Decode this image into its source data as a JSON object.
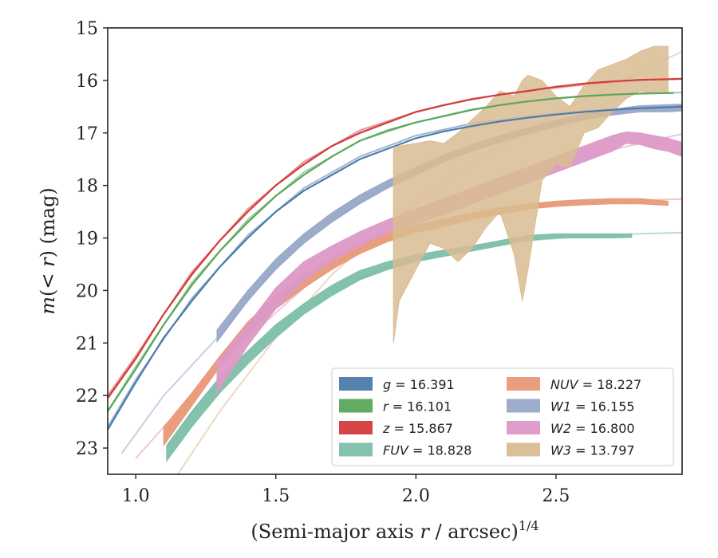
{
  "chart_data": {
    "type": "line",
    "xlabel": "(Semi-major axis r / arcsec)^1/4",
    "ylabel": "m(< r) (mag)",
    "xlim": [
      0.9,
      2.95
    ],
    "ylim": [
      23.5,
      15
    ],
    "y_inverted": true,
    "xticks": [
      1.0,
      1.5,
      2.0,
      2.5
    ],
    "xtick_labels": [
      "1.0",
      "1.5",
      "2.0",
      "2.5"
    ],
    "yticks": [
      15,
      16,
      17,
      18,
      19,
      20,
      21,
      22,
      23
    ],
    "ytick_labels": [
      "15",
      "16",
      "17",
      "18",
      "19",
      "20",
      "21",
      "22",
      "23"
    ],
    "legend_position": "lower-right",
    "series": [
      {
        "name": "g = 16.391",
        "legend": {
          "base": "g",
          "value": "16.391"
        },
        "color": "#4c7bab",
        "kind": "line",
        "width": 2.2,
        "x": [
          0.9,
          1.0,
          1.1,
          1.2,
          1.3,
          1.4,
          1.5,
          1.6,
          1.7,
          1.8,
          1.9,
          2.0,
          2.1,
          2.2,
          2.3,
          2.4,
          2.5,
          2.6,
          2.7,
          2.8,
          2.9,
          2.95
        ],
        "y": [
          22.65,
          21.75,
          20.9,
          20.2,
          19.55,
          19.0,
          18.5,
          18.1,
          17.8,
          17.5,
          17.3,
          17.1,
          16.97,
          16.87,
          16.78,
          16.71,
          16.65,
          16.6,
          16.56,
          16.53,
          16.51,
          16.5
        ],
        "model_x": [
          0.9,
          1.0,
          1.2,
          1.4,
          1.6,
          1.8,
          2.0,
          2.2,
          2.4,
          2.6,
          2.8,
          2.95
        ],
        "model_y": [
          22.6,
          21.7,
          20.15,
          18.95,
          18.05,
          17.45,
          17.05,
          16.82,
          16.68,
          16.58,
          16.52,
          16.49
        ]
      },
      {
        "name": "r = 16.101",
        "legend": {
          "base": "r",
          "value": "16.101"
        },
        "color": "#5aa75a",
        "kind": "line",
        "width": 2.2,
        "x": [
          0.9,
          1.0,
          1.1,
          1.2,
          1.3,
          1.4,
          1.5,
          1.6,
          1.7,
          1.8,
          1.9,
          2.0,
          2.1,
          2.2,
          2.3,
          2.4,
          2.5,
          2.6,
          2.7,
          2.8,
          2.92
        ],
        "y": [
          22.3,
          21.5,
          20.65,
          19.9,
          19.25,
          18.7,
          18.2,
          17.8,
          17.45,
          17.15,
          16.95,
          16.8,
          16.68,
          16.56,
          16.47,
          16.4,
          16.34,
          16.3,
          16.27,
          16.25,
          16.24
        ],
        "model_x": [
          0.9,
          1.0,
          1.2,
          1.4,
          1.6,
          1.8,
          2.0,
          2.2,
          2.4,
          2.6,
          2.8,
          2.95
        ],
        "model_y": [
          22.3,
          21.45,
          19.85,
          18.65,
          17.75,
          17.15,
          16.8,
          16.55,
          16.4,
          16.3,
          16.25,
          16.23
        ]
      },
      {
        "name": "z = 15.867",
        "legend": {
          "base": "z",
          "value": "15.867"
        },
        "color": "#d33b3b",
        "kind": "line",
        "width": 2.2,
        "x": [
          0.9,
          1.0,
          1.1,
          1.2,
          1.3,
          1.4,
          1.5,
          1.6,
          1.7,
          1.8,
          1.9,
          2.0,
          2.1,
          2.2,
          2.3,
          2.4,
          2.5,
          2.6,
          2.7,
          2.8,
          2.95
        ],
        "y": [
          22.05,
          21.3,
          20.45,
          19.7,
          19.05,
          18.5,
          18.0,
          17.6,
          17.25,
          17.0,
          16.8,
          16.6,
          16.47,
          16.36,
          16.27,
          16.2,
          16.12,
          16.06,
          16.02,
          15.99,
          15.97
        ],
        "model_x": [
          0.9,
          1.0,
          1.2,
          1.4,
          1.6,
          1.8,
          2.0,
          2.2,
          2.4,
          2.6,
          2.8,
          2.95
        ],
        "model_y": [
          22.0,
          21.25,
          19.65,
          18.45,
          17.55,
          16.95,
          16.6,
          16.35,
          16.2,
          16.08,
          16.0,
          15.97
        ]
      },
      {
        "name": "FUV = 18.828",
        "legend": {
          "base": "FUV",
          "value": "18.828"
        },
        "color": "#7dbfaa",
        "kind": "band",
        "x": [
          1.11,
          1.2,
          1.3,
          1.4,
          1.5,
          1.6,
          1.7,
          1.8,
          1.9,
          2.0,
          2.1,
          2.2,
          2.3,
          2.4,
          2.5,
          2.6,
          2.7,
          2.77
        ],
        "y_low": [
          23.25,
          22.6,
          21.95,
          21.4,
          20.9,
          20.45,
          20.1,
          19.8,
          19.6,
          19.45,
          19.35,
          19.25,
          19.15,
          19.05,
          19.0,
          19.0,
          19.0,
          18.99
        ],
        "y_high": [
          22.95,
          22.3,
          21.65,
          21.15,
          20.65,
          20.25,
          19.9,
          19.62,
          19.45,
          19.32,
          19.23,
          19.15,
          19.05,
          18.95,
          18.92,
          18.92,
          18.92,
          18.92
        ],
        "model_x": [
          1.11,
          1.2,
          1.4,
          1.6,
          1.8,
          2.0,
          2.2,
          2.4,
          2.6,
          2.8,
          2.95
        ],
        "model_y": [
          23.0,
          22.35,
          21.2,
          20.35,
          19.75,
          19.4,
          19.18,
          19.05,
          18.97,
          18.92,
          18.9
        ]
      },
      {
        "name": "NUV = 18.227",
        "legend": {
          "base": "NUV",
          "value": "18.227"
        },
        "color": "#e89a78",
        "kind": "band",
        "x": [
          1.1,
          1.2,
          1.3,
          1.4,
          1.5,
          1.6,
          1.7,
          1.8,
          1.9,
          2.0,
          2.1,
          2.2,
          2.3,
          2.4,
          2.5,
          2.6,
          2.7,
          2.8,
          2.9
        ],
        "y_low": [
          22.95,
          22.2,
          21.45,
          20.85,
          20.35,
          19.95,
          19.6,
          19.3,
          19.07,
          18.9,
          18.78,
          18.65,
          18.55,
          18.45,
          18.4,
          18.37,
          18.35,
          18.35,
          18.38
        ],
        "y_high": [
          22.6,
          21.95,
          21.25,
          20.6,
          20.1,
          19.7,
          19.38,
          19.1,
          18.9,
          18.75,
          18.63,
          18.52,
          18.42,
          18.35,
          18.3,
          18.27,
          18.25,
          18.25,
          18.3
        ],
        "model_x": [
          1.1,
          1.2,
          1.4,
          1.6,
          1.8,
          2.0,
          2.2,
          2.4,
          2.6,
          2.8,
          2.95
        ],
        "model_y": [
          22.75,
          22.05,
          20.7,
          19.8,
          19.2,
          18.82,
          18.58,
          18.42,
          18.33,
          18.28,
          18.26
        ]
      },
      {
        "name": "W1 = 16.155",
        "legend": {
          "base": "W1",
          "value": "16.155"
        },
        "color": "#99a8c8",
        "kind": "band",
        "x": [
          1.29,
          1.4,
          1.5,
          1.6,
          1.7,
          1.8,
          1.9,
          2.0,
          2.1,
          2.2,
          2.3,
          2.4,
          2.5,
          2.6,
          2.7,
          2.8,
          2.9,
          2.95
        ],
        "y_low": [
          20.98,
          20.2,
          19.6,
          19.1,
          18.7,
          18.35,
          18.05,
          17.8,
          17.55,
          17.35,
          17.18,
          17.02,
          16.88,
          16.75,
          16.66,
          16.6,
          16.6,
          16.58
        ],
        "y_high": [
          20.75,
          20.0,
          19.4,
          18.92,
          18.52,
          18.18,
          17.9,
          17.65,
          17.42,
          17.22,
          17.05,
          16.9,
          16.76,
          16.64,
          16.55,
          16.48,
          16.46,
          16.45
        ],
        "model_x": [
          0.95,
          1.1,
          1.3,
          1.5,
          1.7,
          1.9,
          2.1,
          2.3,
          2.5,
          2.7,
          2.95
        ],
        "model_y": [
          23.1,
          22.0,
          20.85,
          19.55,
          18.65,
          18.0,
          17.5,
          17.12,
          16.82,
          16.62,
          16.48
        ]
      },
      {
        "name": "W2 = 16.800",
        "legend": {
          "base": "W2",
          "value": "16.800"
        },
        "color": "#dd99c6",
        "kind": "band",
        "x": [
          1.29,
          1.4,
          1.5,
          1.6,
          1.7,
          1.8,
          1.9,
          2.0,
          2.1,
          2.2,
          2.3,
          2.4,
          2.5,
          2.6,
          2.7,
          2.75,
          2.8,
          2.85,
          2.9,
          2.95
        ],
        "y_low": [
          21.95,
          21.05,
          20.35,
          19.8,
          19.45,
          19.15,
          18.9,
          18.72,
          18.55,
          18.35,
          18.15,
          17.95,
          17.75,
          17.55,
          17.35,
          17.2,
          17.22,
          17.3,
          17.35,
          17.45
        ],
        "y_high": [
          21.35,
          20.65,
          19.95,
          19.45,
          19.15,
          18.88,
          18.65,
          18.45,
          18.25,
          18.05,
          17.85,
          17.65,
          17.45,
          17.25,
          17.05,
          16.98,
          17.0,
          17.05,
          17.1,
          17.18
        ],
        "model_x": [
          1.0,
          1.2,
          1.4,
          1.6,
          1.8,
          2.0,
          2.2,
          2.4,
          2.6,
          2.8,
          2.95
        ],
        "model_y": [
          23.2,
          22.0,
          20.9,
          19.95,
          19.2,
          18.6,
          18.15,
          17.8,
          17.45,
          17.2,
          17.02
        ]
      },
      {
        "name": "W3 = 13.797",
        "legend": {
          "base": "W3",
          "value": "13.797"
        },
        "color": "#d9bc92",
        "kind": "band",
        "x": [
          1.92,
          1.94,
          2.0,
          2.05,
          2.1,
          2.15,
          2.2,
          2.25,
          2.3,
          2.35,
          2.38,
          2.4,
          2.45,
          2.5,
          2.55,
          2.6,
          2.65,
          2.7,
          2.75,
          2.8,
          2.85,
          2.9
        ],
        "y_low": [
          21.0,
          20.2,
          19.6,
          19.1,
          19.2,
          19.45,
          19.2,
          18.8,
          18.5,
          19.3,
          20.2,
          19.6,
          17.9,
          17.6,
          17.65,
          17.0,
          16.9,
          16.6,
          16.35,
          16.2,
          16.25,
          16.25
        ],
        "y_high": [
          17.3,
          17.25,
          17.2,
          17.15,
          17.2,
          17.0,
          16.75,
          16.5,
          16.2,
          16.3,
          16.0,
          15.9,
          16.0,
          16.3,
          16.5,
          16.1,
          15.8,
          15.7,
          15.6,
          15.45,
          15.35,
          15.35
        ],
        "model_x": [
          1.15,
          1.3,
          1.5,
          1.7,
          1.9,
          2.1,
          2.3,
          2.5,
          2.7,
          2.85,
          2.95
        ],
        "model_y": [
          23.5,
          22.3,
          20.9,
          19.7,
          18.75,
          17.95,
          17.25,
          16.65,
          16.1,
          15.7,
          15.45
        ]
      }
    ]
  }
}
